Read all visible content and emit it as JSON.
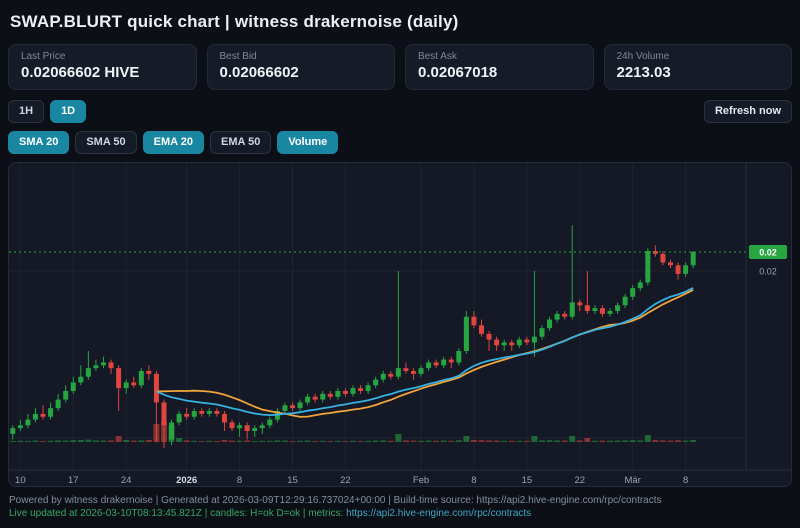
{
  "theme": {
    "accent": "#1a87a2",
    "footer_green": "#35a763",
    "footer_link": "#41a4c4"
  },
  "header": {
    "title": "SWAP.BLURT quick chart | witness drakernoise (daily)"
  },
  "stats": [
    {
      "label": "Last Price",
      "value": "0.02066602 HIVE"
    },
    {
      "label": "Best Bid",
      "value": "0.02066602"
    },
    {
      "label": "Best Ask",
      "value": "0.02067018"
    },
    {
      "label": "24h Volume",
      "value": "2213.03"
    }
  ],
  "timeframes": [
    {
      "label": "1H",
      "active": false
    },
    {
      "label": "1D",
      "active": true
    }
  ],
  "refresh_label": "Refresh now",
  "indicators": [
    {
      "label": "SMA 20",
      "active": true
    },
    {
      "label": "SMA 50",
      "active": false
    },
    {
      "label": "EMA 20",
      "active": true
    },
    {
      "label": "EMA 50",
      "active": false
    },
    {
      "label": "Volume",
      "active": true
    }
  ],
  "chart_data": {
    "type": "candlestick",
    "interval": "1d",
    "start_date": "2025-12-09",
    "last_price": 0.02066602,
    "ylim": [
      0.013,
      0.0239
    ],
    "overlays": {
      "sma_period": 20,
      "ema_period": 20,
      "volume": true
    },
    "colors": {
      "up": "#26a641",
      "down": "#e0453e",
      "sma": "#f0a43a",
      "ema": "#36b1e2",
      "grid": "#1e2430",
      "axis_border": "#2a3040",
      "axis_text": "#9aa3b2"
    },
    "price_axis_labels": [
      {
        "text": "0.02",
        "price": 0.02066602,
        "style": "tag"
      },
      {
        "text": "0.02",
        "price": 0.02,
        "style": "plain"
      }
    ],
    "h_grid_prices": [
      0.02,
      0.014155
    ],
    "x_ticks": [
      {
        "slot": 1,
        "label": "10"
      },
      {
        "slot": 8,
        "label": "17"
      },
      {
        "slot": 15,
        "label": "24"
      },
      {
        "slot": 23,
        "label": "2026",
        "bold": true
      },
      {
        "slot": 30,
        "label": "8"
      },
      {
        "slot": 37,
        "label": "15"
      },
      {
        "slot": 44,
        "label": "22"
      },
      {
        "slot": 54,
        "label": "Feb"
      },
      {
        "slot": 61,
        "label": "8"
      },
      {
        "slot": 68,
        "label": "15"
      },
      {
        "slot": 75,
        "label": "22"
      },
      {
        "slot": 82,
        "label": "Mär"
      },
      {
        "slot": 89,
        "label": "8"
      }
    ],
    "candles": [
      [
        0.0143,
        0.0146,
        0.0141,
        0.0145
      ],
      [
        0.0145,
        0.0148,
        0.0144,
        0.0146
      ],
      [
        0.0146,
        0.015,
        0.0145,
        0.0148
      ],
      [
        0.0148,
        0.0152,
        0.0147,
        0.015
      ],
      [
        0.015,
        0.0153,
        0.0148,
        0.0149
      ],
      [
        0.0149,
        0.0154,
        0.0148,
        0.0152
      ],
      [
        0.0152,
        0.0157,
        0.0151,
        0.0155
      ],
      [
        0.0155,
        0.016,
        0.0154,
        0.0158
      ],
      [
        0.0158,
        0.0163,
        0.0157,
        0.0161
      ],
      [
        0.0161,
        0.0167,
        0.016,
        0.0163
      ],
      [
        0.0163,
        0.0172,
        0.0162,
        0.0166
      ],
      [
        0.0166,
        0.0169,
        0.0165,
        0.0167
      ],
      [
        0.0167,
        0.017,
        0.0166,
        0.0168
      ],
      [
        0.0168,
        0.0169,
        0.0164,
        0.0166
      ],
      [
        0.0166,
        0.0167,
        0.0151,
        0.0159
      ],
      [
        0.0159,
        0.0162,
        0.0157,
        0.0161
      ],
      [
        0.0161,
        0.0163,
        0.0159,
        0.016
      ],
      [
        0.016,
        0.0166,
        0.0159,
        0.0165
      ],
      [
        0.0165,
        0.0167,
        0.0162,
        0.0164
      ],
      [
        0.0164,
        0.0165,
        0.014,
        0.0154
      ],
      [
        0.0154,
        0.0155,
        0.0138,
        0.0146
      ],
      [
        0.0141,
        0.0148,
        0.0139,
        0.0147
      ],
      [
        0.0147,
        0.0151,
        0.0146,
        0.015
      ],
      [
        0.015,
        0.0152,
        0.0148,
        0.0149
      ],
      [
        0.0149,
        0.0152,
        0.0148,
        0.0151
      ],
      [
        0.0151,
        0.0152,
        0.0149,
        0.015
      ],
      [
        0.015,
        0.0152,
        0.0149,
        0.0151
      ],
      [
        0.0151,
        0.0152,
        0.0149,
        0.015
      ],
      [
        0.015,
        0.0151,
        0.0144,
        0.0147
      ],
      [
        0.0147,
        0.0148,
        0.0144,
        0.0145
      ],
      [
        0.0145,
        0.0147,
        0.0142,
        0.0146
      ],
      [
        0.0146,
        0.0147,
        0.0141,
        0.0144
      ],
      [
        0.0144,
        0.0146,
        0.0142,
        0.0145
      ],
      [
        0.0145,
        0.0147,
        0.0143,
        0.0146
      ],
      [
        0.0146,
        0.0149,
        0.0145,
        0.0148
      ],
      [
        0.0148,
        0.0152,
        0.0147,
        0.0151
      ],
      [
        0.0151,
        0.0154,
        0.015,
        0.0153
      ],
      [
        0.0153,
        0.0154,
        0.0151,
        0.0152
      ],
      [
        0.0152,
        0.0155,
        0.0151,
        0.0154
      ],
      [
        0.0154,
        0.0157,
        0.0153,
        0.0156
      ],
      [
        0.0156,
        0.0157,
        0.0154,
        0.0155
      ],
      [
        0.0155,
        0.0158,
        0.0154,
        0.0157
      ],
      [
        0.0157,
        0.0158,
        0.0155,
        0.0156
      ],
      [
        0.0156,
        0.0159,
        0.0155,
        0.0158
      ],
      [
        0.0158,
        0.0159,
        0.0156,
        0.0157
      ],
      [
        0.0157,
        0.016,
        0.0156,
        0.0159
      ],
      [
        0.0159,
        0.016,
        0.0157,
        0.0158
      ],
      [
        0.0158,
        0.0161,
        0.0157,
        0.016
      ],
      [
        0.016,
        0.0163,
        0.0159,
        0.0162
      ],
      [
        0.0162,
        0.0165,
        0.0161,
        0.0164
      ],
      [
        0.0164,
        0.0165,
        0.0162,
        0.0163
      ],
      [
        0.0163,
        0.02,
        0.0162,
        0.0166
      ],
      [
        0.0166,
        0.0168,
        0.0164,
        0.0165
      ],
      [
        0.0165,
        0.0166,
        0.0162,
        0.0164
      ],
      [
        0.0164,
        0.0167,
        0.0163,
        0.0166
      ],
      [
        0.0166,
        0.0169,
        0.0165,
        0.0168
      ],
      [
        0.0168,
        0.0169,
        0.0166,
        0.0167
      ],
      [
        0.0167,
        0.017,
        0.0166,
        0.0169
      ],
      [
        0.0169,
        0.017,
        0.0166,
        0.0168
      ],
      [
        0.0168,
        0.0173,
        0.0167,
        0.0172
      ],
      [
        0.0172,
        0.0186,
        0.0171,
        0.0184
      ],
      [
        0.0184,
        0.0186,
        0.018,
        0.0181
      ],
      [
        0.0181,
        0.0183,
        0.0177,
        0.0178
      ],
      [
        0.0178,
        0.0179,
        0.0172,
        0.0176
      ],
      [
        0.0176,
        0.0177,
        0.0172,
        0.0174
      ],
      [
        0.0174,
        0.0176,
        0.0172,
        0.0175
      ],
      [
        0.0175,
        0.0176,
        0.0172,
        0.0174
      ],
      [
        0.0174,
        0.0177,
        0.0173,
        0.0176
      ],
      [
        0.0176,
        0.0177,
        0.0174,
        0.0175
      ],
      [
        0.0175,
        0.02,
        0.017,
        0.0177
      ],
      [
        0.0177,
        0.0181,
        0.0176,
        0.018
      ],
      [
        0.018,
        0.0184,
        0.0179,
        0.0183
      ],
      [
        0.0183,
        0.0186,
        0.0182,
        0.0185
      ],
      [
        0.0185,
        0.0186,
        0.0183,
        0.0184
      ],
      [
        0.0184,
        0.0216,
        0.0183,
        0.0189
      ],
      [
        0.0189,
        0.019,
        0.0186,
        0.0188
      ],
      [
        0.0188,
        0.02,
        0.0185,
        0.0186
      ],
      [
        0.0186,
        0.0188,
        0.0185,
        0.0187
      ],
      [
        0.0187,
        0.0188,
        0.0184,
        0.0185
      ],
      [
        0.0185,
        0.0187,
        0.0184,
        0.0186
      ],
      [
        0.0186,
        0.0189,
        0.0185,
        0.0188
      ],
      [
        0.0188,
        0.0192,
        0.0187,
        0.0191
      ],
      [
        0.0191,
        0.0195,
        0.019,
        0.0194
      ],
      [
        0.0194,
        0.0197,
        0.0193,
        0.0196
      ],
      [
        0.0196,
        0.0208,
        0.0195,
        0.0207
      ],
      [
        0.0207,
        0.0209,
        0.0205,
        0.0206
      ],
      [
        0.0206,
        0.0207,
        0.0202,
        0.0203
      ],
      [
        0.0203,
        0.0204,
        0.0201,
        0.0202
      ],
      [
        0.0202,
        0.0203,
        0.0197,
        0.0199
      ],
      [
        0.0199,
        0.0203,
        0.0198,
        0.0202
      ],
      [
        0.0202,
        0.0207,
        0.0201,
        0.02066602
      ]
    ],
    "volumes_rel": [
      0.05,
      0.06,
      0.05,
      0.07,
      0.05,
      0.06,
      0.08,
      0.07,
      0.09,
      0.1,
      0.12,
      0.08,
      0.07,
      0.08,
      0.3,
      0.1,
      0.07,
      0.08,
      0.1,
      0.9,
      1.0,
      0.85,
      0.2,
      0.08,
      0.06,
      0.05,
      0.06,
      0.05,
      0.1,
      0.07,
      0.06,
      0.08,
      0.05,
      0.06,
      0.06,
      0.08,
      0.07,
      0.05,
      0.06,
      0.07,
      0.05,
      0.06,
      0.05,
      0.06,
      0.05,
      0.06,
      0.05,
      0.06,
      0.07,
      0.08,
      0.06,
      0.4,
      0.08,
      0.07,
      0.06,
      0.07,
      0.06,
      0.07,
      0.06,
      0.09,
      0.3,
      0.1,
      0.09,
      0.08,
      0.07,
      0.06,
      0.06,
      0.06,
      0.06,
      0.3,
      0.08,
      0.09,
      0.08,
      0.07,
      0.3,
      0.08,
      0.2,
      0.06,
      0.07,
      0.06,
      0.07,
      0.08,
      0.09,
      0.08,
      0.35,
      0.1,
      0.08,
      0.07,
      0.09,
      0.07,
      0.1
    ]
  },
  "footer": {
    "build_line": "Powered by witness drakernoise | Generated at 2026-03-09T12:29:16.737024+00:00 | Build-time source: https://api2.hive-engine.com/rpc/contracts",
    "live_line_prefix": "Live updated at 2026-03-10T08:13:45.821Z | candles: H=ok D=ok | metrics: ",
    "live_line_url": "https://api2.hive-engine.com/rpc/contracts"
  }
}
